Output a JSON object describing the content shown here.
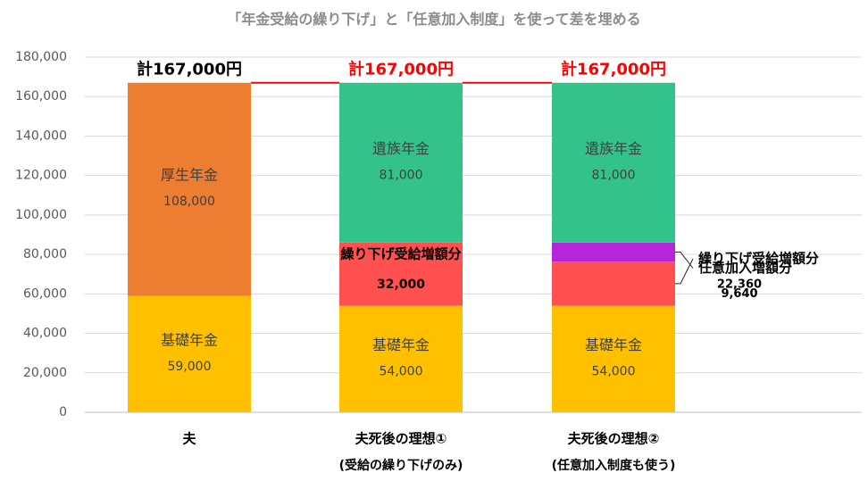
{
  "chart_data": {
    "type": "bar",
    "stacked": true,
    "title": "「年金受給の繰り下げ」と「任意加入制度」を使って差を埋める",
    "ylim": [
      0,
      180000
    ],
    "yticks": [
      "0",
      "20,000",
      "40,000",
      "60,000",
      "80,000",
      "100,000",
      "120,000",
      "140,000",
      "160,000",
      "180,000"
    ],
    "ytick_values": [
      0,
      20000,
      40000,
      60000,
      80000,
      100000,
      120000,
      140000,
      160000,
      180000
    ],
    "grid": true,
    "categories": [
      {
        "line1": "夫",
        "line2": ""
      },
      {
        "line1": "夫死後の理想①",
        "line2": "(受給の繰り下げのみ)"
      },
      {
        "line1": "夫死後の理想②",
        "line2": "(任意加入制度も使う)"
      }
    ],
    "series": [
      {
        "name": "基礎年金",
        "color": "#FFC000",
        "values": [
          59000,
          54000,
          54000
        ]
      },
      {
        "name": "繰り下げ受給増額分",
        "color": "#FF5050",
        "values": [
          0,
          32000,
          22360
        ]
      },
      {
        "name": "任意加入増額分",
        "color": "#B526DA",
        "values": [
          0,
          0,
          9640
        ]
      },
      {
        "name": "厚生年金",
        "color": "#ED7D31",
        "values": [
          108000,
          0,
          0
        ]
      },
      {
        "name": "遺族年金",
        "color": "#33C38A",
        "values": [
          0,
          81000,
          81000
        ]
      }
    ],
    "totals": [
      "計167,000円",
      "計167,000円",
      "計167,000円"
    ],
    "total_colors": [
      "#000000",
      "#FF0000",
      "#FF0000"
    ],
    "connector_color": "#FF0000",
    "segment_labels": [
      {
        "bar": 0,
        "series": 0,
        "name": "基礎年金",
        "value": "59,000"
      },
      {
        "bar": 0,
        "series": 3,
        "name": "厚生年金",
        "value": "108,000"
      },
      {
        "bar": 1,
        "series": 0,
        "name": "基礎年金",
        "value": "54,000"
      },
      {
        "bar": 1,
        "series": 1,
        "name": "繰り下げ受給増額分",
        "value": "32,000"
      },
      {
        "bar": 1,
        "series": 4,
        "name": "遺族年金",
        "value": "81,000"
      },
      {
        "bar": 2,
        "series": 0,
        "name": "基礎年金",
        "value": "54,000"
      },
      {
        "bar": 2,
        "series": 4,
        "name": "遺族年金",
        "value": "81,000"
      }
    ],
    "callouts": [
      {
        "bar": 2,
        "series": 1,
        "name": "繰り下げ受給増額分",
        "value": "22,360"
      },
      {
        "bar": 2,
        "series": 2,
        "name": "任意加入増額分",
        "value": "9,640"
      }
    ]
  }
}
